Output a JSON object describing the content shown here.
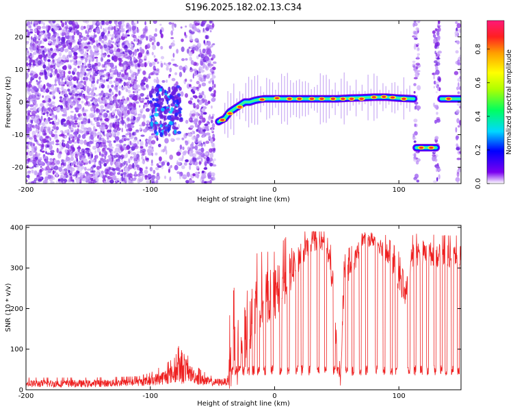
{
  "chart_data": [
    {
      "type": "heatmap",
      "title": "S196.2025.182.02.13.C34",
      "xlabel": "Height of straight line (km)",
      "ylabel": "Frequency (Hz)",
      "xlim": [
        -200,
        150
      ],
      "ylim": [
        -25,
        25
      ],
      "xticks": [
        -200,
        -100,
        0,
        100
      ],
      "xtick_labels": [
        "-200",
        "-100",
        "0",
        "100"
      ],
      "yticks": [
        20,
        10,
        0,
        -10,
        -20
      ],
      "ytick_labels": [
        "20",
        "10",
        "0",
        "-10",
        "-20"
      ],
      "colorbar": {
        "label": "Normalized spectral amplitude",
        "ticks": [
          0.0,
          0.2,
          0.4,
          0.6,
          0.8
        ],
        "tick_labels": [
          "0.0",
          "0.2",
          "0.4",
          "0.6",
          "0.8"
        ],
        "range": [
          0,
          0.97
        ],
        "colors": [
          "#ffffff",
          "#7a00f0",
          "#0000ff",
          "#00d8ff",
          "#00ff60",
          "#b0ff00",
          "#ffff00",
          "#ffa000",
          "#ff2020",
          "#ff1878"
        ]
      },
      "noise_regions": [
        {
          "x": [
            -200,
            -110
          ],
          "y": [
            -25,
            25
          ],
          "density": 1.0
        },
        {
          "x": [
            -110,
            -95
          ],
          "y": [
            -25,
            25
          ],
          "density": 0.55
        },
        {
          "x": [
            -95,
            -68
          ],
          "y": [
            -25,
            25
          ],
          "density": 0.25
        },
        {
          "x": [
            -68,
            -48
          ],
          "y": [
            -25,
            25
          ],
          "density": 0.75
        },
        {
          "x": [
            112,
            116
          ],
          "y": [
            -25,
            25
          ],
          "density": 0.7
        },
        {
          "x": [
            128,
            133
          ],
          "y": [
            -25,
            25
          ],
          "density": 0.7
        },
        {
          "x": [
            146,
            150
          ],
          "y": [
            -25,
            25
          ],
          "density": 0.5
        }
      ],
      "signal_track": {
        "x": [
          -45,
          -40,
          -36,
          -32,
          -28,
          -24,
          -20,
          -16,
          -12,
          -8,
          -4,
          0,
          10,
          20,
          30,
          40,
          50,
          60,
          70,
          80,
          90,
          100,
          112
        ],
        "y": [
          -6,
          -5,
          -3,
          -2,
          -1,
          0,
          0,
          0.5,
          0.8,
          1,
          1,
          1,
          1,
          1,
          1,
          1,
          1,
          1.2,
          1.3,
          1.5,
          1.5,
          1.2,
          1.0
        ]
      },
      "cluster": {
        "x": [
          -100,
          -75
        ],
        "y": [
          -10,
          5
        ]
      },
      "segments": [
        {
          "x": [
            114,
            130
          ],
          "y": -14
        },
        {
          "x": [
            134,
            150
          ],
          "y": 1
        }
      ],
      "hot_spots": [
        {
          "x": -42,
          "y": -5.5
        },
        {
          "x": -36,
          "y": -3.5
        },
        {
          "x": -28,
          "y": -1.5
        },
        {
          "x": -10,
          "y": 0.8
        },
        {
          "x": 2,
          "y": 1.2
        },
        {
          "x": 12,
          "y": 1
        },
        {
          "x": 20,
          "y": 1
        },
        {
          "x": 30,
          "y": 1
        },
        {
          "x": 38,
          "y": 1
        },
        {
          "x": 47,
          "y": 1
        },
        {
          "x": 55,
          "y": 1
        },
        {
          "x": 62,
          "y": 1
        },
        {
          "x": 70,
          "y": 1
        },
        {
          "x": 80,
          "y": 1.5
        },
        {
          "x": 88,
          "y": 1.6
        },
        {
          "x": 95,
          "y": 1.4
        },
        {
          "x": 104,
          "y": 1
        },
        {
          "x": 118,
          "y": -14
        },
        {
          "x": 126,
          "y": -14
        },
        {
          "x": 140,
          "y": 1
        }
      ]
    },
    {
      "type": "line",
      "title": "",
      "xlabel": "Height of straight line (km)",
      "ylabel": "SNR (10 * v/v)",
      "xlim": [
        -200,
        150
      ],
      "ylim": [
        0,
        405
      ],
      "xticks": [
        -200,
        -100,
        0,
        100
      ],
      "xtick_labels": [
        "-200",
        "-100",
        "0",
        "100"
      ],
      "yticks": [
        0,
        100,
        200,
        300,
        400
      ],
      "ytick_labels": [
        "0",
        "100",
        "200",
        "300",
        "400"
      ],
      "series": [
        {
          "color": "#ee2020",
          "envelope": {
            "x": [
              -200,
              -150,
              -110,
              -100,
              -90,
              -80,
              -74,
              -70,
              -60,
              -50,
              -37,
              -36,
              -30,
              -20,
              -10,
              0,
              10,
              20,
              30,
              40,
              45,
              50,
              53,
              56,
              60,
              65,
              70,
              80,
              90,
              100,
              105,
              110,
              120,
              130,
              140,
              150
            ],
            "base": [
              15,
              15,
              18,
              22,
              30,
              40,
              60,
              45,
              25,
              18,
              20,
              50,
              90,
              180,
              230,
              230,
              280,
              330,
              360,
              360,
              310,
              120,
              20,
              270,
              300,
              320,
              370,
              370,
              340,
              280,
              230,
              330,
              340,
              330,
              330,
              330
            ],
            "spread": [
              15,
              15,
              15,
              20,
              30,
              40,
              80,
              40,
              25,
              15,
              15,
              150,
              200,
              150,
              110,
              110,
              100,
              60,
              30,
              30,
              50,
              60,
              20,
              60,
              50,
              40,
              30,
              30,
              40,
              60,
              40,
              50,
              50,
              50,
              50,
              50
            ]
          },
          "dips": [
            -34,
            -31,
            -28,
            -25,
            -21,
            -17,
            -13,
            -8,
            -2,
            5,
            11,
            18,
            22,
            28,
            35,
            41,
            48,
            51,
            58,
            63,
            69,
            74,
            82,
            88,
            94,
            98,
            108,
            113,
            118,
            123,
            129,
            134,
            138,
            143,
            148
          ],
          "dip_value": 35
        }
      ]
    }
  ]
}
